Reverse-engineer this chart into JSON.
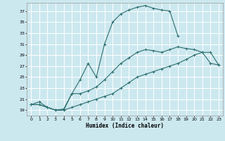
{
  "xlabel": "Humidex (Indice chaleur)",
  "bg_color": "#cce8ef",
  "grid_color": "#ffffff",
  "line_color": "#2d6e6e",
  "xlim": [
    -0.5,
    23.5
  ],
  "ylim": [
    18,
    38.5
  ],
  "yticks": [
    19,
    21,
    23,
    25,
    27,
    29,
    31,
    33,
    35,
    37
  ],
  "xticks": [
    0,
    1,
    2,
    3,
    4,
    5,
    6,
    7,
    8,
    9,
    10,
    11,
    12,
    13,
    14,
    15,
    16,
    17,
    18,
    19,
    20,
    21,
    22,
    23
  ],
  "line1_x": [
    0,
    1,
    2,
    3,
    4,
    5,
    6,
    7,
    8,
    9,
    10,
    11,
    12,
    13,
    14,
    15,
    16,
    17,
    18
  ],
  "line1_y": [
    20,
    20.5,
    19.5,
    19.0,
    19.0,
    22.0,
    24.5,
    27.5,
    25.0,
    31.0,
    35.0,
    36.5,
    37.2,
    37.7,
    38.0,
    37.5,
    37.2,
    37.0,
    32.5
  ],
  "line2_x": [
    0,
    1,
    2,
    3,
    4,
    5,
    6,
    7,
    8,
    9,
    10,
    11,
    12,
    13,
    14,
    15,
    16,
    17,
    18,
    19,
    20,
    21,
    22,
    23
  ],
  "line2_y": [
    20,
    20,
    19.5,
    19.0,
    19.2,
    22.0,
    22.0,
    22.5,
    23.2,
    24.5,
    26.0,
    27.5,
    28.5,
    29.5,
    30.0,
    29.8,
    29.5,
    30.0,
    30.5,
    30.2,
    30.0,
    29.5,
    29.5,
    27.2
  ],
  "line3_x": [
    0,
    1,
    2,
    3,
    4,
    5,
    6,
    7,
    8,
    9,
    10,
    11,
    12,
    13,
    14,
    15,
    16,
    17,
    18,
    19,
    20,
    21,
    22,
    23
  ],
  "line3_y": [
    20,
    20,
    19.5,
    19.0,
    19.0,
    19.5,
    20.0,
    20.5,
    21.0,
    21.5,
    22.0,
    23.0,
    24.0,
    25.0,
    25.5,
    26.0,
    26.5,
    27.0,
    27.5,
    28.2,
    29.0,
    29.5,
    27.5,
    27.2
  ]
}
